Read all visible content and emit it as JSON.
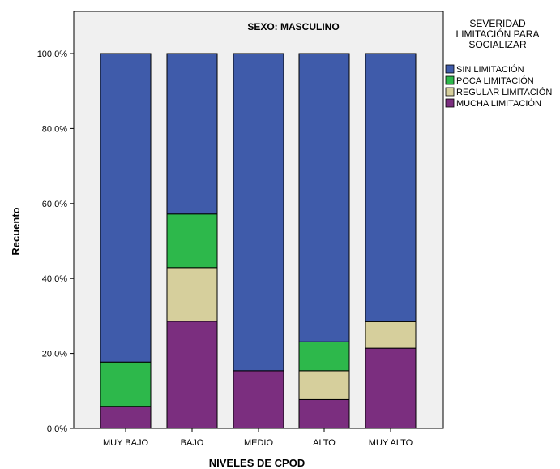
{
  "chart_data": {
    "type": "bar",
    "stacked": true,
    "panel_title": "SEXO: MASCULINO",
    "xlabel": "NIVELES DE CPOD",
    "ylabel": "Recuento",
    "ylim": [
      0,
      100
    ],
    "yticks": [
      "0,0%",
      "20,0%",
      "40,0%",
      "60,0%",
      "80,0%",
      "100,0%"
    ],
    "yticks_values": [
      0,
      20,
      40,
      60,
      80,
      100
    ],
    "categories": [
      "MUY BAJO",
      "BAJO",
      "MEDIO",
      "ALTO",
      "MUY ALTO"
    ],
    "legend_title": [
      "SEVERIDAD",
      "LIMITACIÓN PARA",
      "SOCIALIZAR"
    ],
    "legend_position": "right",
    "series": [
      {
        "name": "MUCHA LIMITACIÓN",
        "color": "#7B2E7F",
        "values": [
          5.9,
          28.6,
          15.4,
          7.7,
          21.4
        ]
      },
      {
        "name": "REGULAR LIMITACIÓN",
        "color": "#D6CF9C",
        "values": [
          0,
          14.3,
          0,
          7.7,
          7.1
        ]
      },
      {
        "name": "POCA LIMITACIÓN",
        "color": "#2DB84B",
        "values": [
          11.8,
          14.3,
          0,
          7.7,
          0
        ]
      },
      {
        "name": "SIN LIMITACIÓN",
        "color": "#3F5BAA",
        "values": [
          82.3,
          42.8,
          84.6,
          76.9,
          71.5
        ]
      }
    ],
    "legend_order": [
      "SIN LIMITACIÓN",
      "POCA LIMITACIÓN",
      "REGULAR LIMITACIÓN",
      "MUCHA LIMITACIÓN"
    ],
    "plot_background": "#F0F0F0",
    "grid": false
  }
}
